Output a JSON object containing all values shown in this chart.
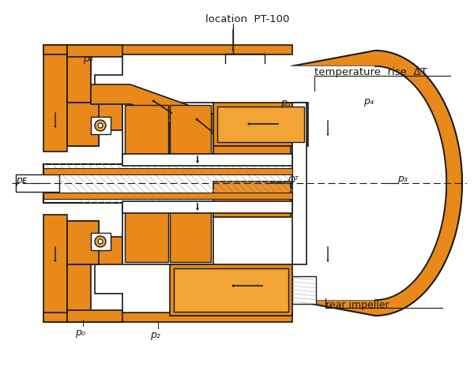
{
  "bg_color": "#ffffff",
  "orange": "#E8891A",
  "orange_light": "#F2A535",
  "orange_dark": "#C97010",
  "black": "#1a1a1a",
  "white": "#ffffff",
  "gray": "#888888",
  "hatch_color": "#bbbbbb",
  "labels": {
    "p0_top": "p₀",
    "p0_bottom": "p₀",
    "pe": "pᴇ",
    "p2": "p₂",
    "p3": "p₃",
    "p4": "p₄",
    "p5": "p₅",
    "qt": "Qᵀ",
    "location": "location  PT-100",
    "temp_rise": "temperature  rise  ΔT",
    "rear_impeller": "rear impeller"
  },
  "figsize": [
    6.0,
    4.65
  ],
  "dpi": 100
}
